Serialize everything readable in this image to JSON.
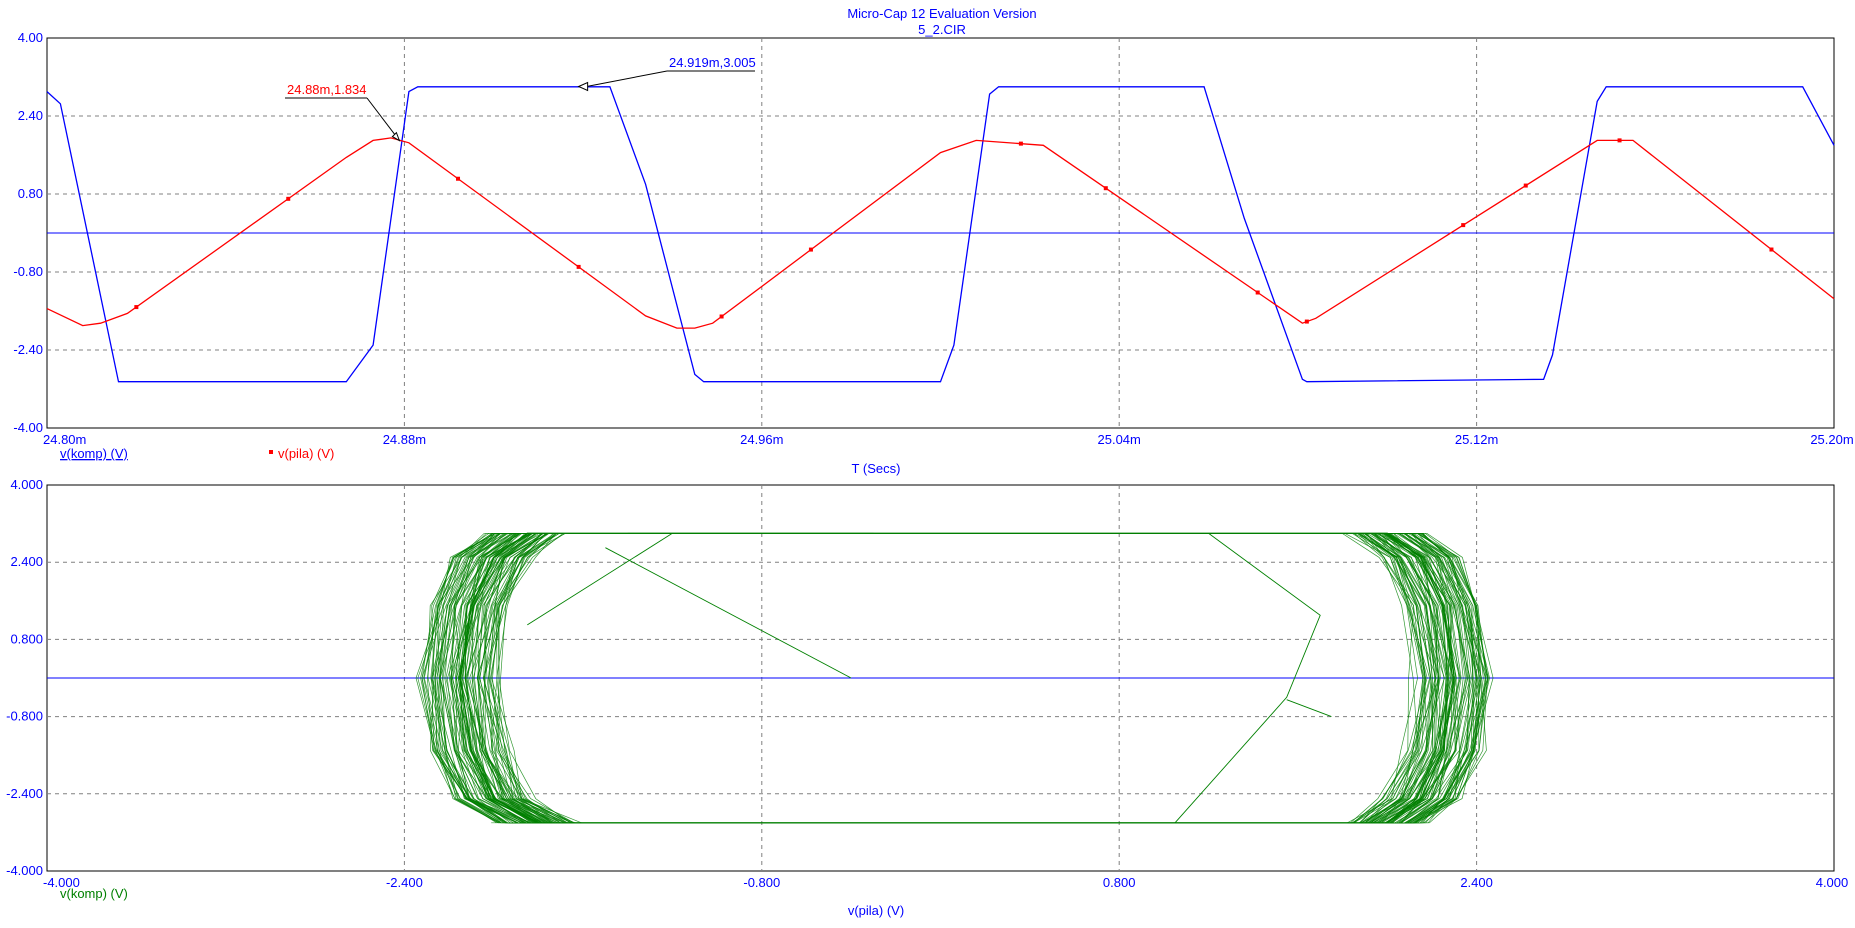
{
  "header": {
    "title": "Micro-Cap 12 Evaluation Version",
    "subtitle": "5_2.CIR"
  },
  "colors": {
    "komp": "#0000ff",
    "pila": "#ff0000",
    "xy": "#008000",
    "zero": "#0000ff",
    "labels": "#0000ff"
  },
  "chart_data": [
    {
      "type": "line",
      "xlabel": "T (Secs)",
      "ylabel": "",
      "xlim": [
        0.0248,
        0.0252
      ],
      "ylim": [
        -4.0,
        4.0
      ],
      "x_ticks": [
        "24.80m",
        "24.88m",
        "24.96m",
        "25.04m",
        "25.12m",
        "25.20m"
      ],
      "y_ticks": [
        "4.00",
        "2.40",
        "0.80",
        "-0.80",
        "-2.40",
        "-4.00"
      ],
      "grid": true,
      "series": [
        {
          "name": "v(komp) (V)",
          "color": "#0000ff",
          "x": [
            0.0248,
            0.024803,
            0.024816,
            0.024867,
            0.024873,
            0.024881,
            0.024883,
            0.024926,
            0.024934,
            0.024945,
            0.024947,
            0.025,
            0.025003,
            0.025011,
            0.025013,
            0.025059,
            0.025068,
            0.025081,
            0.025082,
            0.025135,
            0.025137,
            0.025147,
            0.025149,
            0.025193,
            0.0252
          ],
          "y": [
            2.9,
            2.65,
            -3.05,
            -3.05,
            -2.3,
            2.9,
            3.0,
            3.0,
            1.0,
            -2.9,
            -3.05,
            -3.05,
            -2.3,
            2.85,
            3.0,
            3.0,
            0.3,
            -3.0,
            -3.05,
            -3.0,
            -2.5,
            2.7,
            3.0,
            3.0,
            1.8
          ]
        },
        {
          "name": "v(pila) (V)",
          "color": "#ff0000",
          "x": [
            0.0248,
            0.024808,
            0.024812,
            0.024818,
            0.024867,
            0.024873,
            0.024877,
            0.024881,
            0.024934,
            0.024941,
            0.024945,
            0.024949,
            0.025,
            0.025008,
            0.025023,
            0.025081,
            0.025084,
            0.025147,
            0.025155,
            0.0252
          ],
          "y": [
            -1.55,
            -1.9,
            -1.85,
            -1.65,
            1.55,
            1.9,
            1.95,
            1.85,
            -1.7,
            -1.95,
            -1.95,
            -1.85,
            1.65,
            1.9,
            1.8,
            -1.85,
            -1.75,
            1.9,
            1.9,
            -1.35
          ]
        }
      ],
      "markers": {
        "series": "v(pila) (V)",
        "x": [
          0.02482,
          0.024854,
          0.024892,
          0.024919,
          0.024951,
          0.024971,
          0.025018,
          0.025037,
          0.025071,
          0.025082,
          0.025117,
          0.025131,
          0.025152,
          0.025186
        ]
      },
      "annotations": [
        {
          "text": "24.88m,1.834",
          "x": 0.02488,
          "y": 1.834,
          "color": "#ff0000"
        },
        {
          "text": "24.919m,3.005",
          "x": 0.024919,
          "y": 3.005,
          "color": "#0000ff"
        }
      ],
      "legend": "bottom-left"
    },
    {
      "type": "scatter",
      "xlabel": "v(pila) (V)",
      "ylabel": "v(komp) (V)",
      "xlim": [
        -4.0,
        4.0
      ],
      "ylim": [
        -4.0,
        4.0
      ],
      "x_ticks": [
        "-4.000",
        "-2.400",
        "-0.800",
        "0.800",
        "2.400",
        "4.000"
      ],
      "y_ticks": [
        "4.000",
        "2.400",
        "0.800",
        "-0.800",
        "-2.400",
        "-4.000"
      ],
      "grid": true,
      "series": [
        {
          "name": "v(komp) (V)",
          "color": "#008000",
          "x": [
            -1.8,
            -2.0,
            -2.1,
            -2.15,
            -2.1,
            -2.0,
            -1.85,
            2.0,
            2.15,
            2.25,
            2.3,
            2.25,
            2.15,
            2.0,
            -1.8
          ],
          "y": [
            -3.0,
            -2.5,
            -1.5,
            0.0,
            1.5,
            2.5,
            3.0,
            3.0,
            2.5,
            1.5,
            0.0,
            -1.5,
            -2.5,
            -3.0,
            -3.0
          ]
        }
      ],
      "legend": "bottom-left"
    }
  ]
}
